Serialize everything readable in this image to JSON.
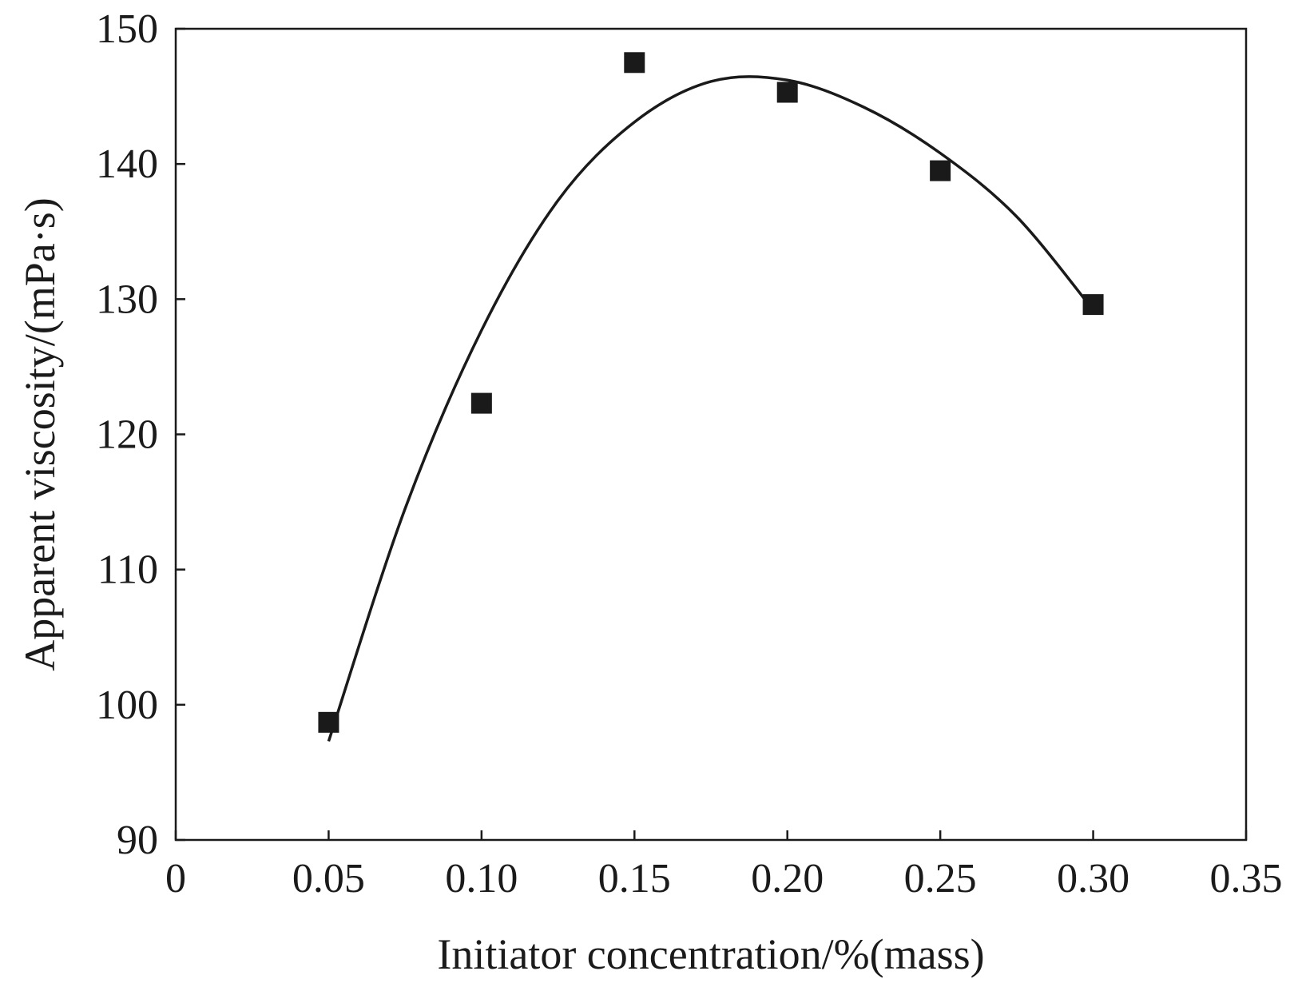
{
  "chart_data": {
    "type": "scatter",
    "xlabel": "Initiator concentration/%(mass)",
    "ylabel": "Apparent viscosity/(mPa·s)",
    "xlim": [
      0,
      0.35
    ],
    "ylim": [
      90,
      150
    ],
    "x_ticks": [
      0,
      0.05,
      0.1,
      0.15,
      0.2,
      0.25,
      0.3,
      0.35
    ],
    "x_tick_labels": [
      "0",
      "0.05",
      "0.10",
      "0.15",
      "0.20",
      "0.25",
      "0.30",
      "0.35"
    ],
    "y_ticks": [
      90,
      100,
      110,
      120,
      130,
      140,
      150
    ],
    "y_tick_labels": [
      "90",
      "100",
      "110",
      "120",
      "130",
      "140",
      "150"
    ],
    "grid": false,
    "marker": "square",
    "series": [
      {
        "points": [
          {
            "x": 0.05,
            "y": 98.7
          },
          {
            "x": 0.1,
            "y": 122.3
          },
          {
            "x": 0.15,
            "y": 147.5
          },
          {
            "x": 0.2,
            "y": 145.3
          },
          {
            "x": 0.25,
            "y": 139.5
          },
          {
            "x": 0.3,
            "y": 129.6
          }
        ]
      }
    ],
    "fit_curve": {
      "type": "polynomial",
      "x_range": [
        0.05,
        0.3
      ],
      "points": [
        {
          "x": 0.05,
          "y": 97.3
        },
        {
          "x": 0.075,
          "y": 114.5
        },
        {
          "x": 0.1,
          "y": 127.7
        },
        {
          "x": 0.125,
          "y": 137.3
        },
        {
          "x": 0.15,
          "y": 143.1
        },
        {
          "x": 0.175,
          "y": 146.1
        },
        {
          "x": 0.2,
          "y": 146.2
        },
        {
          "x": 0.225,
          "y": 144.2
        },
        {
          "x": 0.25,
          "y": 140.8
        },
        {
          "x": 0.275,
          "y": 136.1
        },
        {
          "x": 0.3,
          "y": 129.2
        }
      ]
    },
    "colors": {
      "marker": "#1a1a1a",
      "line": "#1a1a1a",
      "axis": "#1a1a1a"
    }
  }
}
